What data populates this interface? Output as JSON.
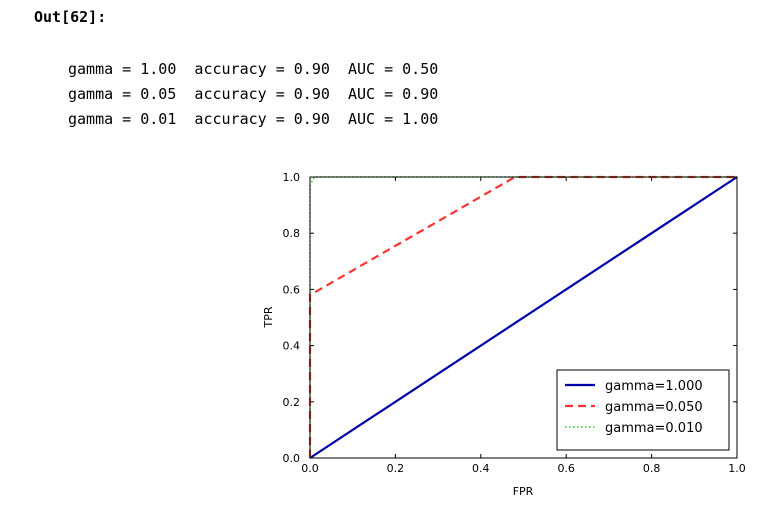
{
  "cell": {
    "prompt": "Out[62]:",
    "stdout_lines": [
      "gamma = 1.00  accuracy = 0.90  AUC = 0.50",
      "gamma = 0.05  accuracy = 0.90  AUC = 0.90",
      "gamma = 0.01  accuracy = 0.90  AUC = 1.00"
    ]
  },
  "chart_data": {
    "type": "line",
    "title": "",
    "xlabel": "FPR",
    "ylabel": "TPR",
    "xlim": [
      0.0,
      1.0
    ],
    "ylim": [
      0.0,
      1.0
    ],
    "xticks": [
      "0.0",
      "0.2",
      "0.4",
      "0.6",
      "0.8",
      "1.0"
    ],
    "yticks": [
      "0.0",
      "0.2",
      "0.4",
      "0.6",
      "0.8",
      "1.0"
    ],
    "grid": false,
    "legend_position": "lower-right",
    "series": [
      {
        "name": "gamma=1.000",
        "color": "#0000aa",
        "style": "solid",
        "x": [
          0.0,
          1.0
        ],
        "y": [
          0.0,
          1.0
        ]
      },
      {
        "name": "gamma=0.050",
        "color": "#ff3333",
        "style": "dashed",
        "x": [
          0.0,
          0.0,
          0.48,
          1.0
        ],
        "y": [
          0.0,
          0.58,
          1.0,
          1.0
        ]
      },
      {
        "name": "gamma=0.010",
        "color": "#33cc33",
        "style": "dotted",
        "x": [
          0.0,
          0.0,
          0.01,
          1.0
        ],
        "y": [
          0.0,
          0.97,
          1.0,
          1.0
        ]
      }
    ]
  }
}
